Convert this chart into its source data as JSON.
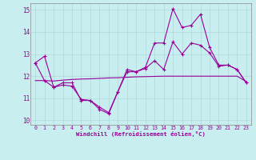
{
  "xlabel": "Windchill (Refroidissement éolien,°C)",
  "background_color": "#c8eef0",
  "grid_color": "#b0d8da",
  "line_color": "#990099",
  "x_ticks": [
    0,
    1,
    2,
    3,
    4,
    5,
    6,
    7,
    8,
    9,
    10,
    11,
    12,
    13,
    14,
    15,
    16,
    17,
    18,
    19,
    20,
    21,
    22,
    23
  ],
  "ylim": [
    9.8,
    15.3
  ],
  "y_ticks": [
    10,
    11,
    12,
    13,
    14,
    15
  ],
  "line1_x": [
    0,
    1,
    2,
    3,
    4,
    5,
    6,
    7,
    8,
    9,
    10,
    11,
    12,
    13,
    14,
    15,
    16,
    17,
    18,
    19,
    20,
    21,
    22,
    23
  ],
  "line1_y": [
    12.6,
    12.9,
    11.5,
    11.7,
    11.7,
    10.9,
    10.9,
    10.5,
    10.3,
    11.3,
    12.3,
    12.2,
    12.4,
    13.5,
    13.5,
    15.05,
    14.2,
    14.3,
    14.8,
    13.3,
    12.5,
    12.5,
    12.3,
    11.7
  ],
  "line2_x": [
    0,
    1,
    2,
    3,
    4,
    5,
    6,
    7,
    8,
    9,
    10,
    11,
    12,
    13,
    14,
    15,
    16,
    17,
    18,
    19,
    20,
    21,
    22,
    23
  ],
  "line2_y": [
    11.8,
    11.8,
    11.78,
    11.82,
    11.85,
    11.87,
    11.88,
    11.9,
    11.92,
    11.93,
    11.95,
    11.97,
    11.98,
    11.99,
    12.0,
    12.0,
    12.0,
    12.0,
    12.0,
    12.0,
    12.0,
    12.0,
    12.0,
    11.75
  ],
  "line3_x": [
    0,
    1,
    2,
    3,
    4,
    5,
    6,
    7,
    8,
    9,
    10,
    11,
    12,
    13,
    14,
    15,
    16,
    17,
    18,
    19,
    20,
    21,
    22,
    23
  ],
  "line3_y": [
    12.6,
    11.8,
    11.5,
    11.6,
    11.55,
    10.95,
    10.9,
    10.6,
    10.35,
    11.3,
    12.2,
    12.2,
    12.35,
    12.7,
    12.3,
    13.55,
    13.0,
    13.5,
    13.4,
    13.05,
    12.45,
    12.5,
    12.3,
    11.7
  ]
}
